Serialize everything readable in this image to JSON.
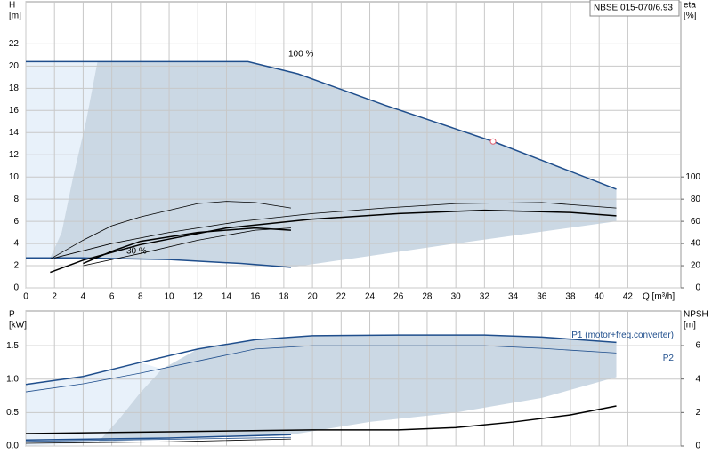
{
  "chart_data": [
    {
      "type": "line",
      "title": "NBSE 015-070/6.93",
      "xlabel": "Q [m³/h]",
      "ylabel": [
        "H",
        "[m]"
      ],
      "y2label": [
        "eta",
        "[%]"
      ],
      "xlim": [
        0,
        45.7
      ],
      "xticks": [
        0,
        2,
        4,
        6,
        8,
        10,
        12,
        14,
        16,
        18,
        20,
        22,
        24,
        26,
        28,
        30,
        32,
        34,
        36,
        38,
        40,
        42
      ],
      "ylim": [
        0,
        25.8
      ],
      "yticks": [
        0,
        2,
        4,
        6,
        8,
        10,
        12,
        14,
        16,
        18,
        20,
        22
      ],
      "y2lim": [
        0,
        258
      ],
      "y2ticks": [
        0,
        20,
        40,
        60,
        80,
        100
      ],
      "grid": true,
      "annotations": [
        "100 %",
        "30 %"
      ],
      "regions": [
        {
          "color": "#e8f1fa",
          "x": [
            0,
            1.7,
            2.5,
            3.3,
            4.2,
            5,
            0
          ],
          "values": [
            2.7,
            2.7,
            5,
            10,
            15,
            20.4,
            20.4
          ]
        },
        {
          "color": "#cbd8e4",
          "x": [
            1.7,
            2.5,
            3.3,
            4.2,
            5,
            15.5,
            19,
            25,
            32.6,
            41.2,
            41.2,
            30,
            18.5,
            15,
            10,
            4
          ],
          "values": [
            2.7,
            5,
            10,
            15,
            20.4,
            20.4,
            19.3,
            16.5,
            13.2,
            8.9,
            6,
            4,
            1.85,
            2.2,
            2.55,
            2.7
          ]
        }
      ],
      "series": [
        {
          "color": "#1f4e8c",
          "style": "thick",
          "x": [
            0,
            5,
            10,
            15.5,
            19,
            22,
            25,
            28,
            32.6,
            36,
            41.2
          ],
          "values": [
            20.4,
            20.4,
            20.4,
            20.4,
            19.3,
            17.9,
            16.5,
            15.2,
            13.2,
            11.5,
            8.9
          ]
        },
        {
          "color": "#1f4e8c",
          "style": "thick",
          "x": [
            0,
            4,
            10,
            15,
            18.5
          ],
          "values": [
            2.7,
            2.7,
            2.55,
            2.2,
            1.85
          ]
        },
        {
          "color": "#000000",
          "style": "thick",
          "axis": "y2",
          "x": [
            1.7,
            4,
            8,
            14,
            20,
            26,
            32,
            38,
            41.2
          ],
          "values": [
            14,
            25,
            39,
            54,
            62,
            67,
            70,
            68,
            65
          ]
        },
        {
          "color": "#000000",
          "style": "thin",
          "axis": "y2",
          "x": [
            2,
            6,
            10,
            15,
            20,
            25,
            30,
            36,
            41.2
          ],
          "values": [
            27,
            40,
            50,
            60,
            67,
            72,
            76,
            77,
            72
          ]
        },
        {
          "color": "#000000",
          "style": "thin",
          "axis": "y2",
          "x": [
            1.7,
            4,
            6,
            8,
            12,
            14,
            16,
            18.5
          ],
          "values": [
            26,
            43,
            56,
            64,
            76,
            78,
            77,
            72
          ]
        },
        {
          "color": "#000000",
          "style": "thick",
          "axis": "y2",
          "x": [
            4,
            6,
            8,
            12,
            16,
            18.5
          ],
          "values": [
            22,
            33,
            42,
            50,
            54,
            52
          ]
        },
        {
          "color": "#000000",
          "style": "thin",
          "axis": "y2",
          "x": [
            4,
            8,
            12,
            16,
            18.5
          ],
          "values": [
            20,
            31,
            43,
            52,
            54
          ]
        }
      ],
      "points": [
        {
          "x": 32.6,
          "y": 13.2,
          "color": "#e06070"
        }
      ]
    },
    {
      "type": "line",
      "ylabel": [
        "P",
        "[kW]"
      ],
      "y2label": [
        "NPSH",
        "[m]"
      ],
      "xlim": [
        0,
        45.7
      ],
      "xticks": [
        0,
        2,
        4,
        6,
        8,
        10,
        12,
        14,
        16,
        18,
        20,
        22,
        24,
        26,
        28,
        30,
        32,
        34,
        36,
        38,
        40,
        42
      ],
      "ylim": [
        0,
        2.02
      ],
      "yticks": [
        {
          "value": 0,
          "label": "0.0"
        },
        0.5,
        {
          "value": 1,
          "label": "1.0"
        },
        1.5
      ],
      "y2lim": [
        0,
        8.07
      ],
      "y2ticks": [
        0,
        2,
        4,
        6
      ],
      "grid": true,
      "regions": [
        {
          "color": "#e8f1fa",
          "x": [
            0,
            5,
            6.5,
            8,
            9.5,
            8,
            4,
            0
          ],
          "values": [
            0,
            0.05,
            0.4,
            0.8,
            1.15,
            1.25,
            1.04,
            0.92
          ]
        },
        {
          "color": "#cbd8e4",
          "x": [
            5,
            6.5,
            8,
            9.5,
            12,
            16,
            20,
            26,
            32,
            36,
            41.2,
            41.2,
            36,
            30,
            24,
            18.5,
            10
          ],
          "values": [
            0.05,
            0.4,
            0.8,
            1.15,
            1.45,
            1.59,
            1.65,
            1.66,
            1.66,
            1.63,
            1.55,
            1.03,
            0.72,
            0.5,
            0.36,
            0.17,
            0.12
          ]
        }
      ],
      "series": [
        {
          "name": "P1 (motor+freq.converter)",
          "color": "#1f4e8c",
          "style": "thick",
          "x": [
            0,
            4,
            8,
            12,
            16,
            20,
            26,
            32,
            36,
            41.2
          ],
          "values": [
            0.92,
            1.04,
            1.25,
            1.45,
            1.59,
            1.65,
            1.66,
            1.66,
            1.63,
            1.55
          ]
        },
        {
          "name": "P2",
          "color": "#1f4e8c",
          "style": "thin",
          "x": [
            0,
            4,
            8,
            12,
            16,
            20,
            26,
            32,
            36,
            41.2
          ],
          "values": [
            0.81,
            0.93,
            1.09,
            1.27,
            1.45,
            1.5,
            1.5,
            1.5,
            1.46,
            1.39
          ]
        },
        {
          "color": "#000000",
          "style": "thick",
          "axis": "y2",
          "x": [
            0,
            10,
            20,
            26,
            30,
            34,
            38,
            41.2
          ],
          "values": [
            0.74,
            0.85,
            0.96,
            0.96,
            1.1,
            1.43,
            1.86,
            2.39
          ]
        },
        {
          "color": "#1f4e8c",
          "style": "thick",
          "x": [
            0,
            10,
            18.5
          ],
          "values": [
            0.09,
            0.12,
            0.17
          ]
        },
        {
          "color": "#1f4e8c",
          "style": "thin",
          "x": [
            0,
            10,
            18.5
          ],
          "values": [
            0.07,
            0.1,
            0.13
          ]
        },
        {
          "color": "#000000",
          "style": "thin",
          "axis": "y2",
          "x": [
            0,
            10,
            18.5
          ],
          "values": [
            0.16,
            0.25,
            0.42
          ]
        }
      ]
    }
  ]
}
